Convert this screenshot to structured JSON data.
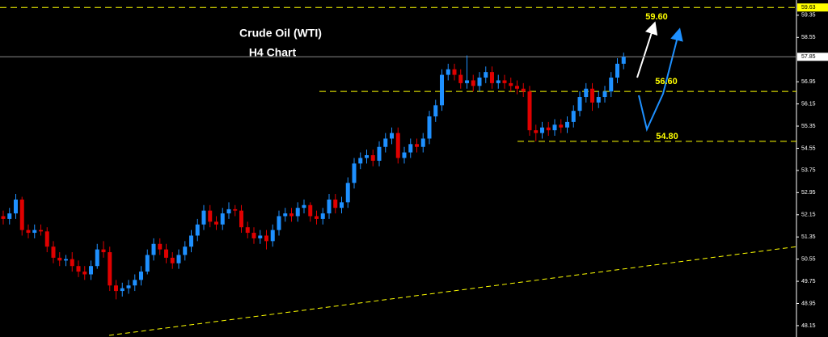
{
  "chart_data": {
    "type": "candlestick",
    "title": "Crude Oil (WTI)",
    "subtitle": "H4 Chart",
    "open": [
      52.1,
      52.0,
      52.2,
      52.7,
      51.6,
      51.5,
      51.6,
      51.55,
      51.0,
      50.6,
      50.5,
      50.55,
      50.3,
      50.1,
      50.0,
      50.3,
      50.9,
      50.8,
      49.6,
      49.4,
      49.5,
      49.6,
      49.8,
      50.1,
      50.7,
      51.1,
      50.9,
      50.6,
      50.4,
      50.7,
      51.0,
      51.4,
      51.8,
      52.3,
      51.9,
      51.8,
      52.2,
      52.35,
      52.3,
      51.7,
      51.5,
      51.3,
      51.4,
      51.2,
      51.6,
      52.1,
      52.2,
      52.1,
      52.4,
      52.5,
      52.1,
      52.0,
      52.2,
      52.7,
      52.4,
      52.6,
      53.3,
      54.0,
      54.2,
      54.3,
      54.1,
      54.6,
      54.9,
      55.1,
      54.2,
      54.4,
      54.7,
      54.6,
      54.9,
      55.7,
      56.1,
      57.2,
      57.4,
      57.2,
      56.9,
      57.0,
      56.8,
      57.1,
      57.3,
      56.9,
      57.0,
      56.9,
      56.8,
      56.7,
      56.6,
      55.2,
      55.1,
      55.3,
      55.2,
      55.4,
      55.3,
      55.5,
      55.9,
      56.4,
      56.7,
      56.2,
      56.4,
      56.6,
      57.1,
      57.6
    ],
    "high": [
      52.3,
      52.4,
      52.9,
      52.8,
      51.8,
      51.8,
      51.8,
      51.7,
      51.2,
      50.8,
      50.7,
      50.8,
      50.5,
      50.3,
      50.5,
      51.1,
      51.2,
      51.0,
      49.8,
      49.7,
      49.8,
      50.0,
      50.3,
      50.9,
      51.3,
      51.3,
      51.1,
      50.8,
      50.9,
      51.2,
      51.6,
      52.0,
      52.5,
      52.5,
      52.1,
      52.4,
      52.6,
      52.5,
      52.5,
      51.9,
      51.7,
      51.6,
      51.6,
      51.8,
      52.3,
      52.4,
      52.4,
      52.6,
      52.7,
      52.6,
      52.3,
      52.4,
      52.9,
      52.9,
      52.8,
      53.5,
      54.2,
      54.4,
      54.5,
      54.5,
      54.8,
      55.1,
      55.3,
      55.3,
      54.6,
      54.9,
      54.9,
      55.1,
      55.9,
      56.3,
      57.4,
      57.6,
      57.6,
      57.4,
      57.9,
      57.2,
      57.3,
      57.5,
      57.5,
      57.2,
      57.2,
      57.1,
      57.0,
      56.9,
      56.8,
      55.4,
      55.5,
      55.5,
      55.6,
      55.6,
      55.7,
      56.1,
      56.6,
      56.9,
      56.9,
      56.6,
      56.8,
      57.3,
      57.8,
      58.0
    ],
    "low": [
      51.8,
      51.8,
      52.0,
      51.4,
      51.3,
      51.3,
      51.4,
      50.8,
      50.4,
      50.3,
      50.3,
      50.1,
      49.9,
      49.8,
      49.8,
      50.2,
      50.6,
      49.4,
      49.1,
      49.2,
      49.3,
      49.4,
      49.6,
      50.0,
      50.5,
      50.7,
      50.4,
      50.2,
      50.2,
      50.5,
      50.8,
      51.2,
      51.6,
      51.7,
      51.6,
      51.6,
      52.0,
      52.1,
      51.5,
      51.3,
      51.1,
      51.1,
      50.9,
      51.0,
      51.4,
      51.9,
      51.9,
      51.9,
      52.2,
      51.9,
      51.8,
      51.8,
      52.0,
      52.2,
      52.2,
      52.4,
      53.1,
      53.8,
      54.0,
      53.9,
      53.9,
      54.4,
      54.7,
      54.0,
      54.0,
      54.2,
      54.4,
      54.4,
      54.7,
      55.5,
      55.9,
      57.0,
      57.0,
      56.7,
      56.7,
      56.6,
      56.6,
      56.9,
      56.7,
      56.7,
      56.7,
      56.6,
      56.5,
      56.4,
      55.0,
      54.8,
      54.9,
      55.0,
      55.0,
      55.1,
      55.1,
      55.3,
      55.7,
      56.2,
      55.9,
      56.0,
      56.2,
      56.4,
      56.9,
      57.4
    ],
    "close": [
      52.0,
      52.2,
      52.7,
      51.6,
      51.5,
      51.6,
      51.55,
      51.0,
      50.6,
      50.5,
      50.55,
      50.3,
      50.1,
      50.0,
      50.3,
      50.9,
      50.8,
      49.6,
      49.4,
      49.5,
      49.6,
      49.8,
      50.1,
      50.7,
      51.1,
      50.9,
      50.6,
      50.4,
      50.7,
      51.0,
      51.4,
      51.8,
      52.3,
      51.9,
      51.8,
      52.2,
      52.35,
      52.3,
      51.7,
      51.5,
      51.3,
      51.4,
      51.2,
      51.6,
      52.1,
      52.2,
      52.1,
      52.4,
      52.5,
      52.1,
      52.0,
      52.2,
      52.7,
      52.4,
      52.6,
      53.3,
      54.0,
      54.2,
      54.3,
      54.1,
      54.6,
      54.9,
      55.1,
      54.2,
      54.4,
      54.7,
      54.6,
      54.9,
      55.7,
      56.1,
      57.2,
      57.4,
      57.2,
      56.9,
      57.0,
      56.8,
      57.1,
      57.3,
      56.9,
      57.0,
      56.9,
      56.8,
      56.7,
      56.6,
      55.2,
      55.1,
      55.3,
      55.2,
      55.4,
      55.3,
      55.5,
      55.9,
      56.4,
      56.7,
      56.2,
      56.4,
      56.6,
      57.1,
      57.6,
      57.85
    ],
    "up_color": "#1e90ff",
    "down_color": "#e00000",
    "ylim": [
      47.74,
      59.9
    ],
    "yticks": [
      48.15,
      48.95,
      49.75,
      50.55,
      51.35,
      52.15,
      52.95,
      53.75,
      54.55,
      55.35,
      56.15,
      56.95,
      58.55,
      59.35
    ],
    "top_level": {
      "value": 59.63,
      "label": "59.63"
    },
    "last_price": {
      "value": 57.85,
      "label": "57.85"
    },
    "targets": [
      {
        "value": 59.6,
        "label": "59.60"
      },
      {
        "value": 56.6,
        "label": "56.60"
      },
      {
        "value": 54.8,
        "label": "54.80"
      }
    ],
    "trendline": [
      47.8,
      51.0
    ],
    "level_color": "#ffff00"
  }
}
